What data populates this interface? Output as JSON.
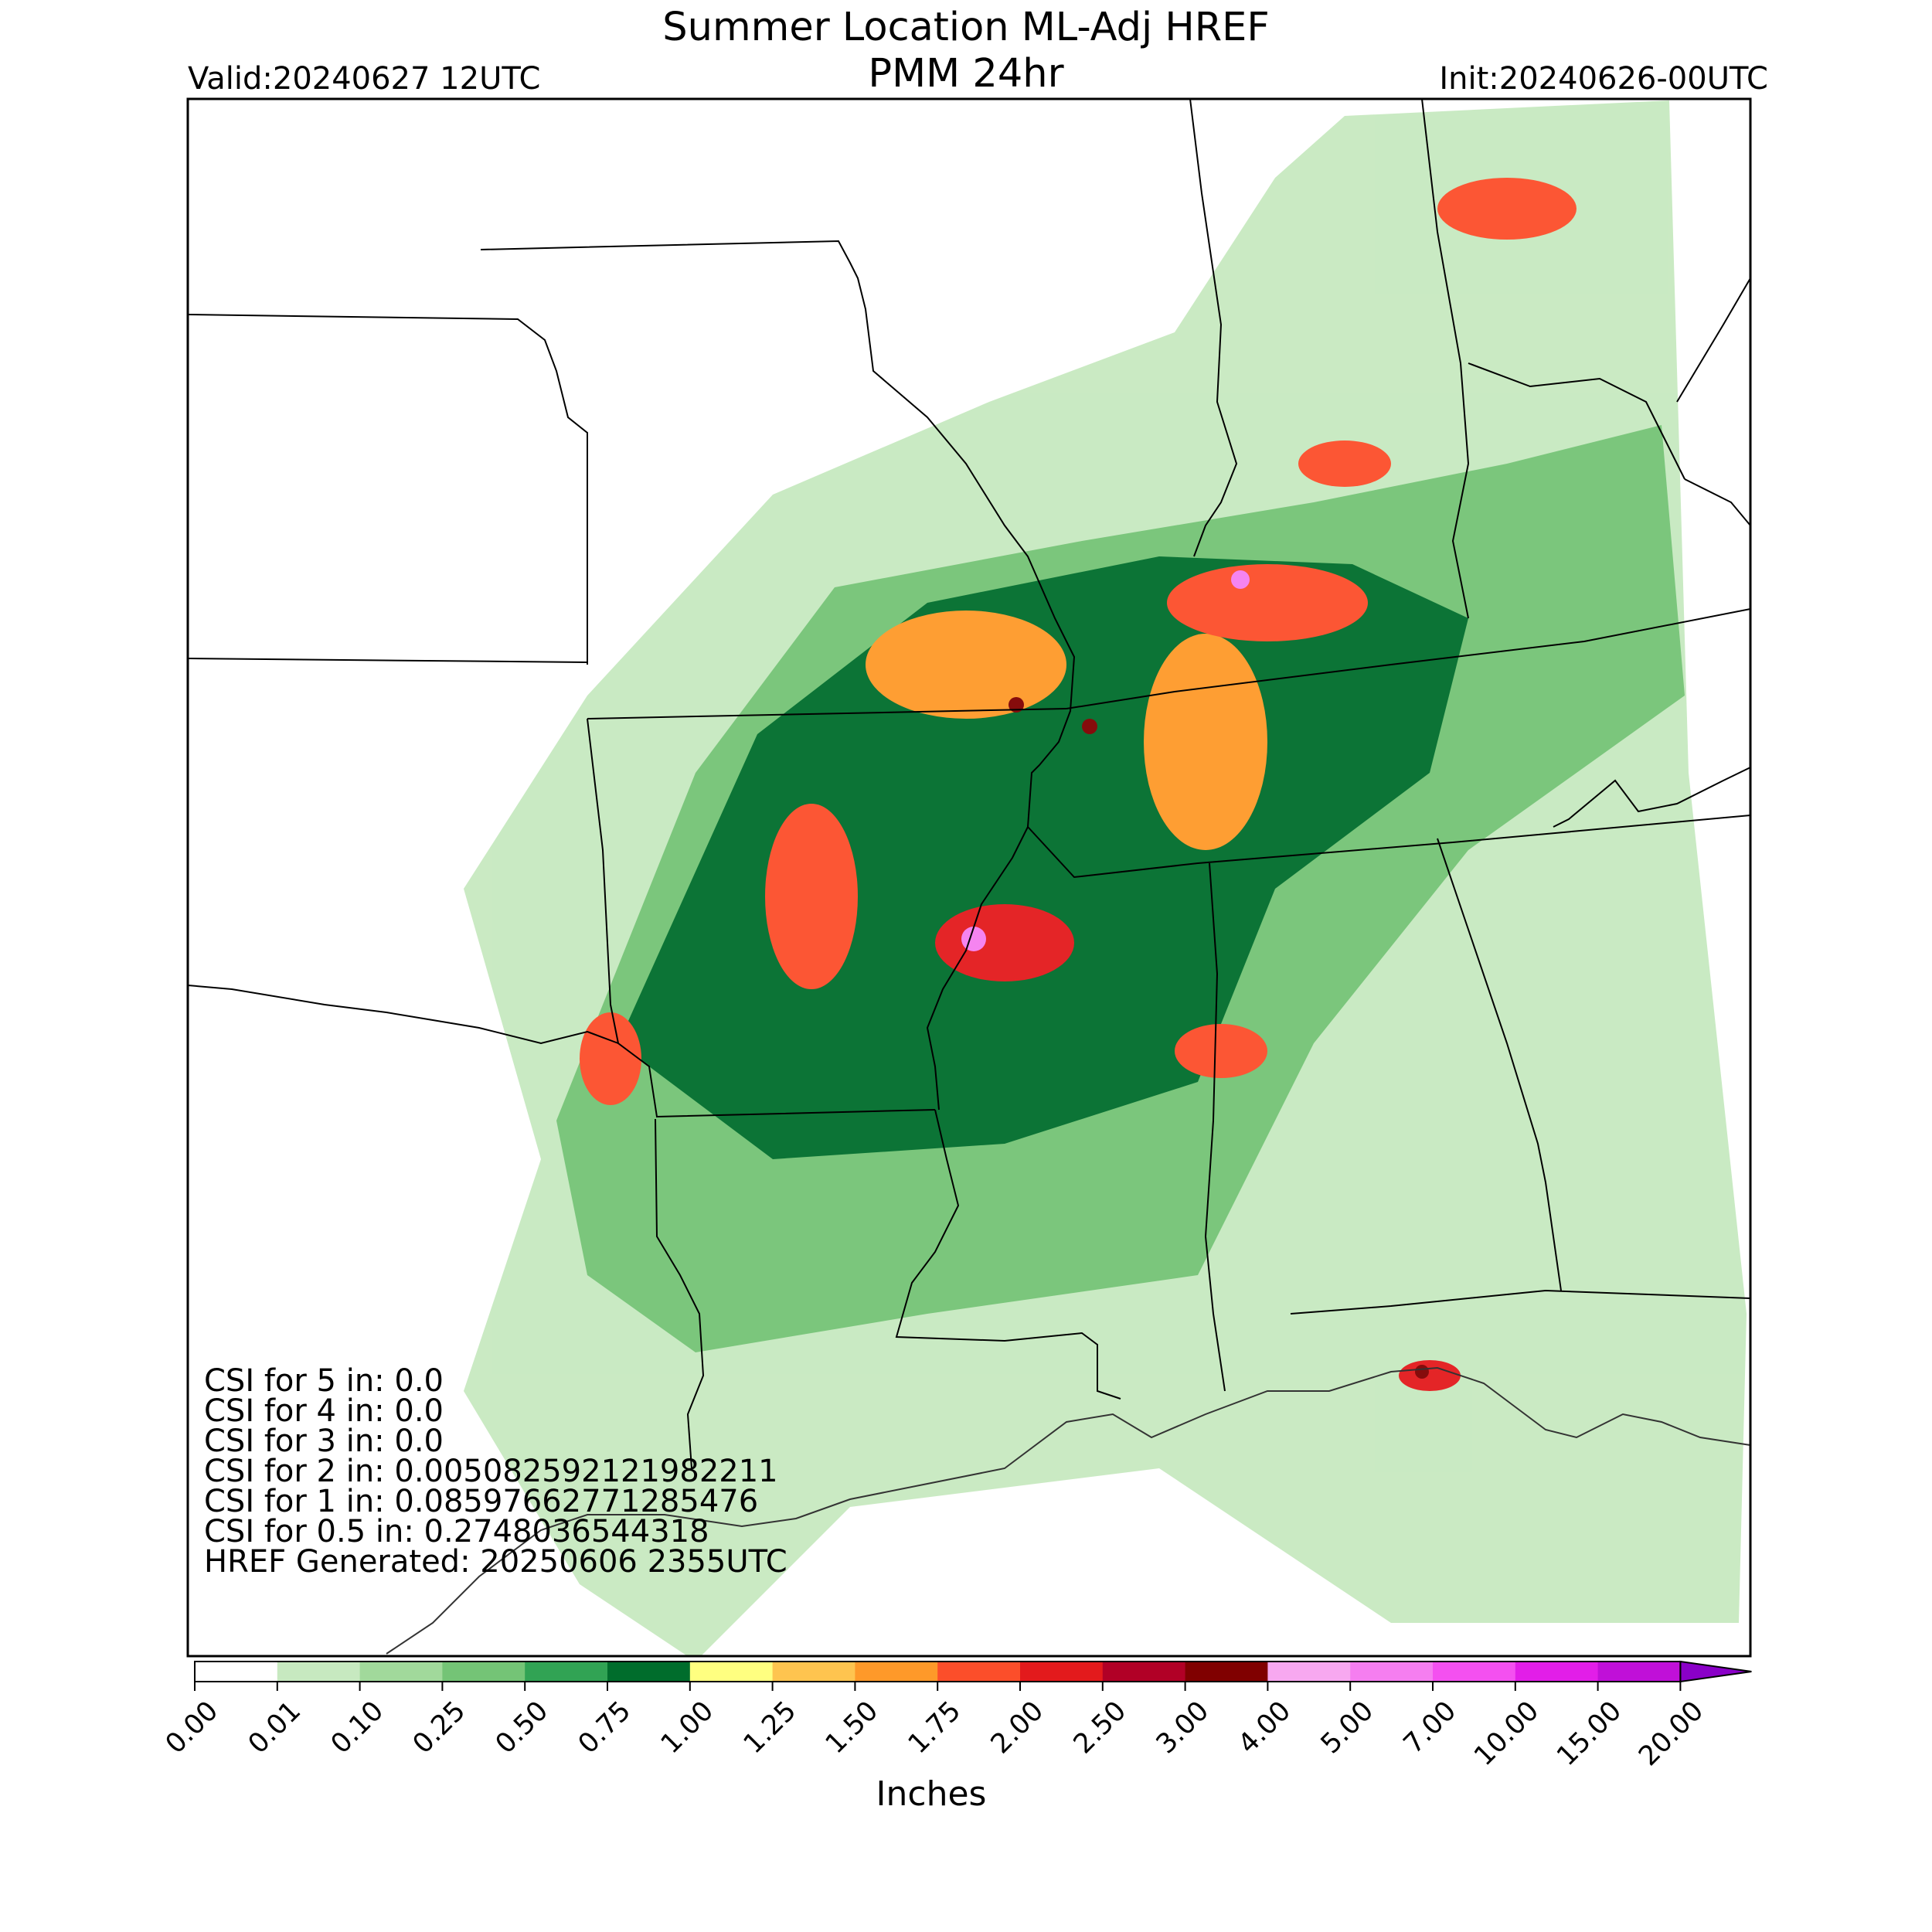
{
  "header": {
    "title_line1": "Summer Location ML-Adj HREF",
    "title_line2": "PMM 24hr",
    "valid": "Valid:20240627 12UTC",
    "init": "Init:20240626-00UTC"
  },
  "stats": [
    "CSI for 5 in: 0.0",
    "CSI for 4 in: 0.0",
    "CSI for 3 in: 0.0",
    "CSI for 2 in: 0.005082592121982211",
    "CSI for 1 in: 0.08597662771285476",
    "CSI for 0.5 in: 0.2748036544318",
    "HREF Generated: 20250606 2355UTC"
  ],
  "colorbar": {
    "label": "Inches",
    "ticks": [
      "0.00",
      "0.01",
      "0.10",
      "0.25",
      "0.50",
      "0.75",
      "1.00",
      "1.25",
      "1.50",
      "1.75",
      "2.00",
      "2.50",
      "3.00",
      "4.00",
      "5.00",
      "7.00",
      "10.00",
      "15.00",
      "20.00"
    ],
    "colors": [
      "#ffffff",
      "#c7e9c0",
      "#a1d99b",
      "#74c476",
      "#31a354",
      "#006d2c",
      "#ffff80",
      "#fec44f",
      "#fe9929",
      "#fc4e2a",
      "#e31a1c",
      "#b10026",
      "#800000",
      "#f7a8f0",
      "#f57ef0",
      "#f450f0",
      "#e21ee8",
      "#c010d8",
      "#8a00c8"
    ],
    "extend": "max"
  },
  "map": {
    "region": "Southern/Central United States",
    "field": "24hr precipitation",
    "cell_colors_cycle": [
      "#c7e9c0",
      "#a1d99b",
      "#74c476",
      "#31a354",
      "#006d2c",
      "#ffff80",
      "#fec44f",
      "#fe9929",
      "#fc4e2a",
      "#e31a1c",
      "#b10026",
      "#800000",
      "#f57ef0"
    ]
  }
}
